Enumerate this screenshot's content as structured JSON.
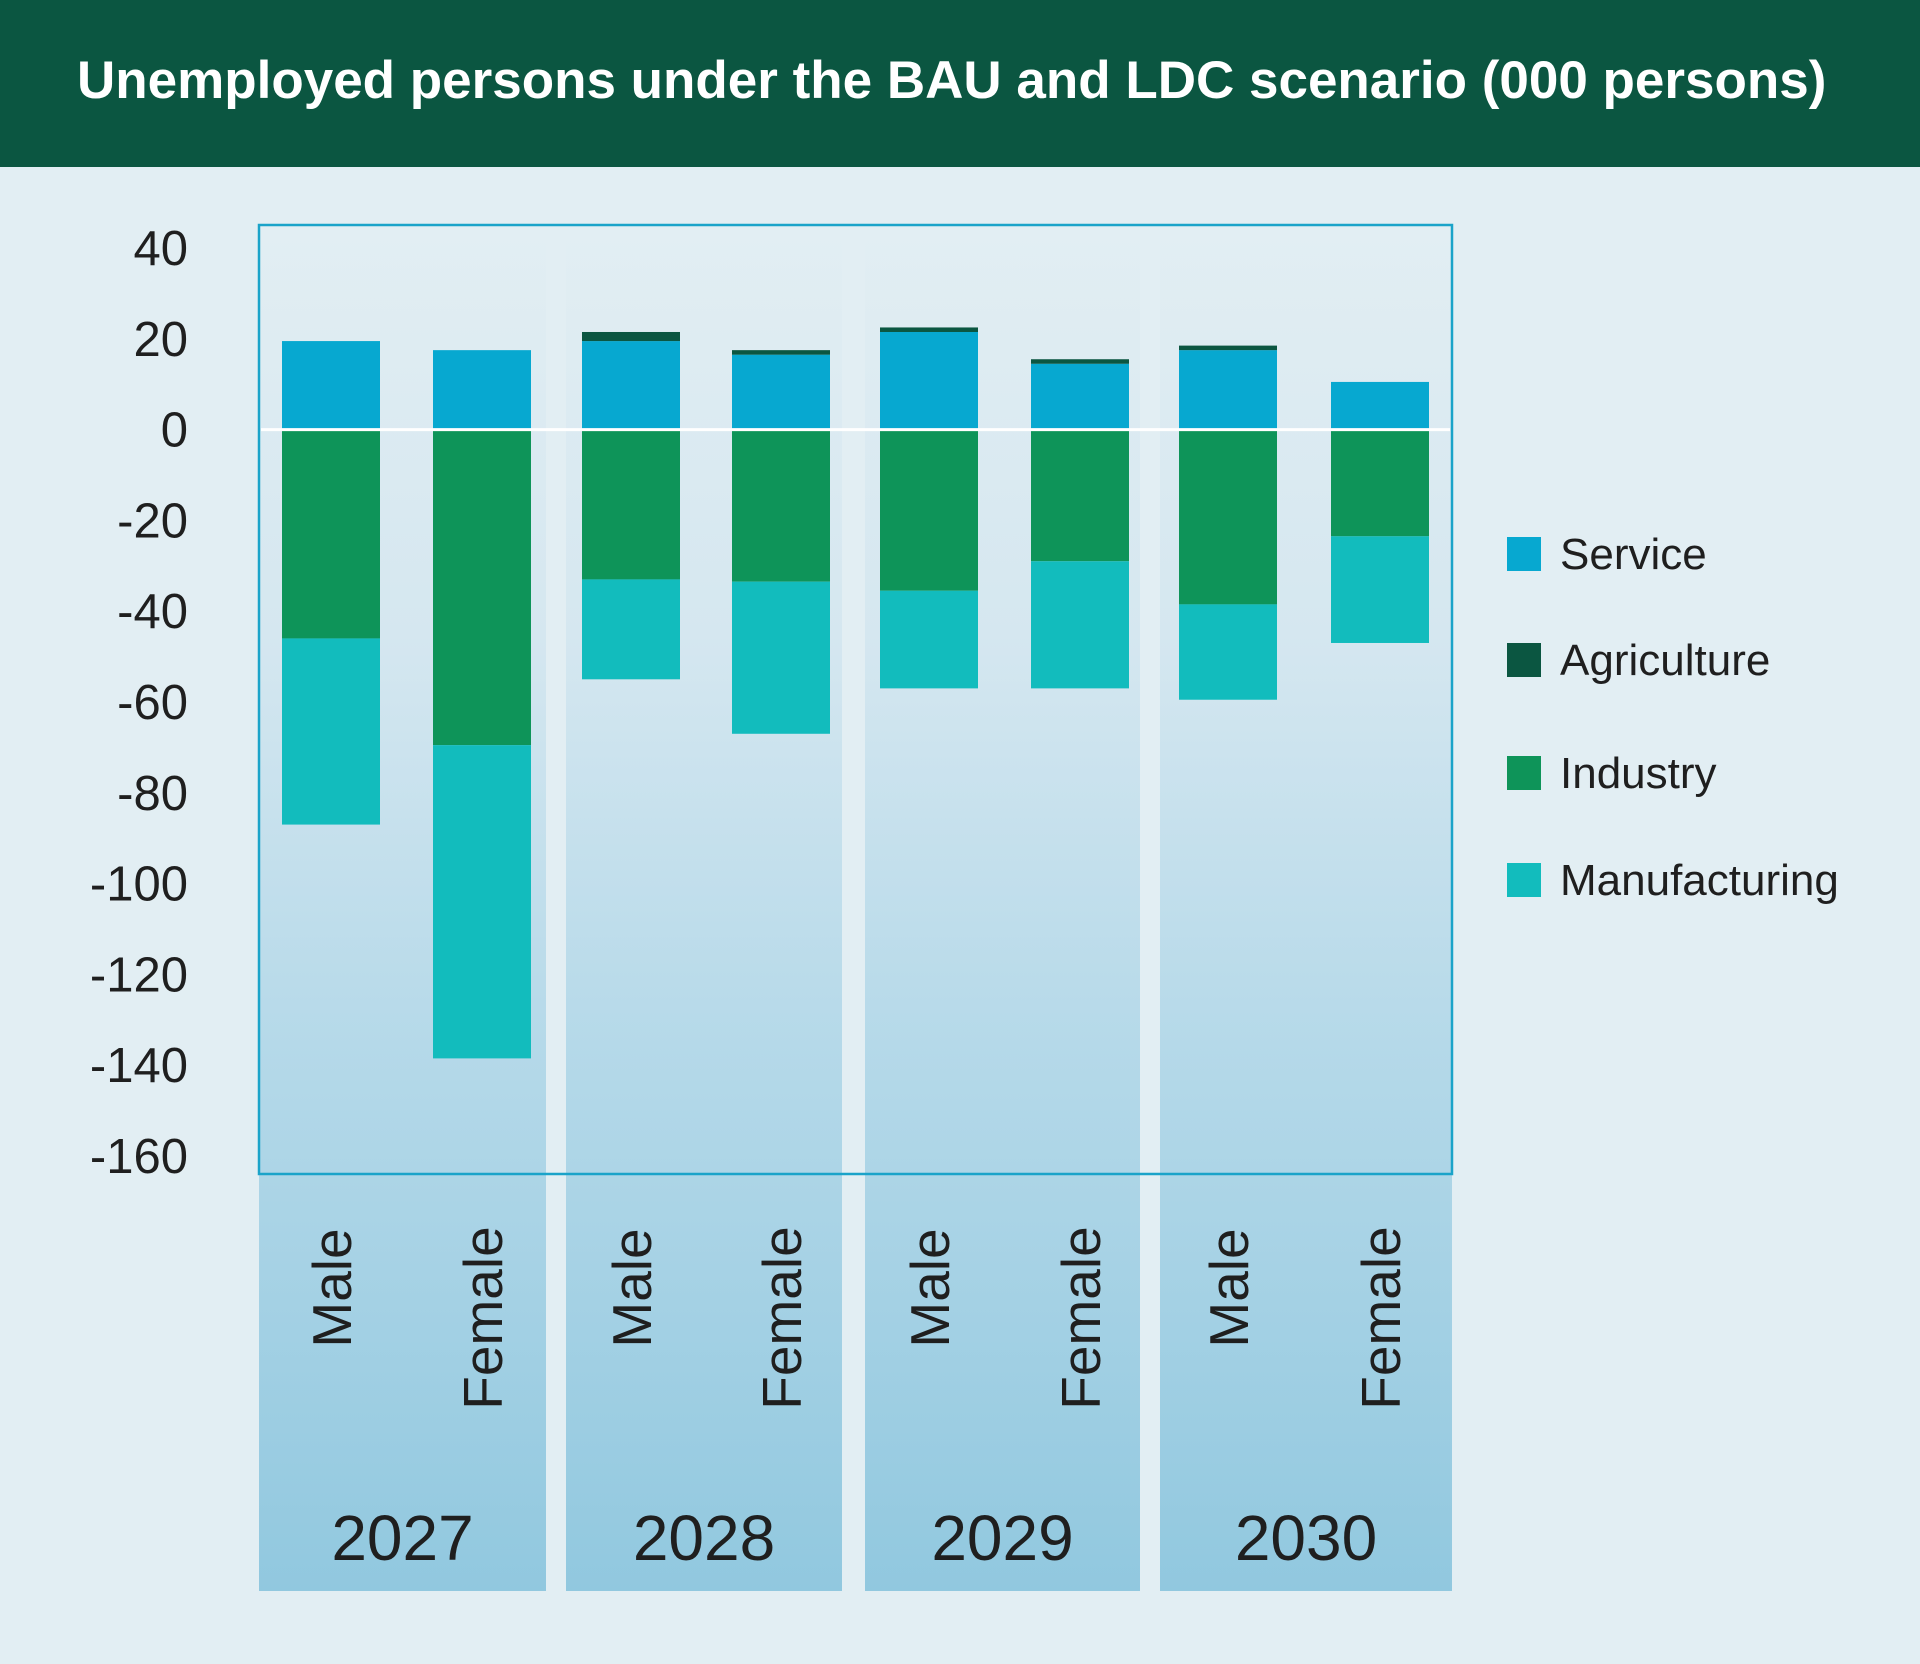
{
  "chart_data": {
    "type": "bar",
    "stacked": true,
    "title": "Unemployed persons under the BAU and LDC scenario (000 persons)",
    "ylim": [
      -160,
      40
    ],
    "yticks": [
      "40",
      "20",
      "0",
      "-20",
      "-40",
      "-60",
      "-80",
      "-100",
      "-120",
      "-140",
      "-160"
    ],
    "groups": [
      "2027",
      "2028",
      "2029",
      "2030"
    ],
    "categories": [
      {
        "group": "2027",
        "label": "Male"
      },
      {
        "group": "2027",
        "label": "Female"
      },
      {
        "group": "2028",
        "label": "Male"
      },
      {
        "group": "2028",
        "label": "Female"
      },
      {
        "group": "2029",
        "label": "Male"
      },
      {
        "group": "2029",
        "label": "Female"
      },
      {
        "group": "2030",
        "label": "Male"
      },
      {
        "group": "2030",
        "label": "Female"
      }
    ],
    "series": [
      {
        "name": "Service",
        "color": "#07a8d0",
        "values": [
          19.5,
          17.5,
          19.5,
          16.5,
          21.5,
          14.5,
          17.5,
          10.5
        ]
      },
      {
        "name": "Agriculture",
        "color": "#0b5641",
        "values": [
          0,
          0,
          2,
          1,
          1,
          1,
          1,
          0
        ]
      },
      {
        "name": "Industry",
        "color": "#0e9459",
        "values": [
          -46,
          -69.5,
          -33,
          -33.5,
          -35.5,
          -29,
          -38.5,
          -23.5
        ]
      },
      {
        "name": "Manufacturing",
        "color": "#12bcbd",
        "values": [
          -41,
          -69,
          -22,
          -33.5,
          -21.5,
          -28,
          -21,
          -23.5
        ]
      }
    ],
    "legend_position": "right"
  }
}
